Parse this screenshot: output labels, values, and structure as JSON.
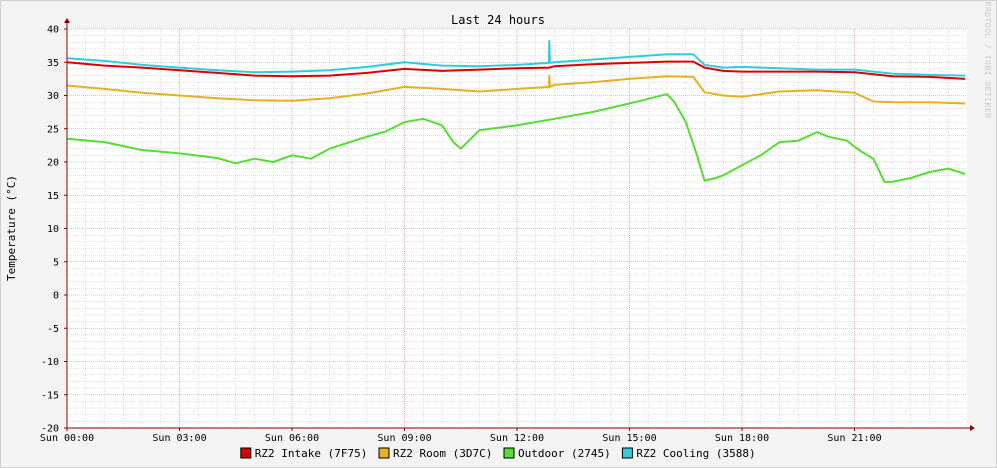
{
  "colors": {
    "background": "#f3f3f3",
    "canvas": "#ffffff",
    "minor_grid": "#e6b4b4",
    "major_grid": "#e08080",
    "axis": "#8b0000"
  },
  "chart_data": {
    "type": "line",
    "title": "Last 24 hours",
    "xlabel": "",
    "ylabel": "Temperature (°C)",
    "watermark": "RRDTOOL / TOBI OETIKER",
    "ylim": [
      -20,
      40
    ],
    "xlim_hours": [
      0,
      24
    ],
    "y_ticks": [
      40,
      35,
      30,
      25,
      20,
      15,
      10,
      5,
      0,
      -5,
      -10,
      -15,
      -20
    ],
    "x_tick_labels": [
      "Sun 00:00",
      "Sun 03:00",
      "Sun 06:00",
      "Sun 09:00",
      "Sun 12:00",
      "Sun 15:00",
      "Sun 18:00",
      "Sun 21:00"
    ],
    "x_tick_hours": [
      0,
      3,
      6,
      9,
      12,
      15,
      18,
      21
    ],
    "grid": true,
    "legend_position": "bottom",
    "series": [
      {
        "name": "RZ2 Intake (7F75)",
        "color": "#dd0000",
        "x": [
          0,
          1,
          2,
          3,
          4,
          5,
          6,
          7,
          8,
          9,
          10,
          11,
          12,
          12.85,
          13,
          14,
          15,
          16,
          16.7,
          17,
          17.5,
          18,
          19,
          20,
          21,
          22,
          23,
          23.95
        ],
        "y": [
          35,
          34.5,
          34.2,
          33.8,
          33.4,
          33.0,
          32.9,
          33.0,
          33.4,
          34.0,
          33.7,
          33.9,
          34.1,
          34.2,
          34.4,
          34.7,
          34.9,
          35.1,
          35.1,
          34.2,
          33.7,
          33.6,
          33.6,
          33.6,
          33.5,
          32.9,
          32.8,
          32.5
        ]
      },
      {
        "name": "RZ2 Room (3D7C)",
        "color": "#e6b020",
        "x": [
          0,
          1,
          2,
          3,
          4,
          5,
          6,
          7,
          8,
          9,
          10,
          11,
          12,
          12.85,
          12.86,
          12.88,
          13,
          14,
          15,
          16,
          16.7,
          17,
          17.5,
          18,
          19,
          20,
          21,
          21.5,
          22,
          23,
          23.95
        ],
        "y": [
          31.5,
          31.0,
          30.4,
          30.0,
          29.6,
          29.3,
          29.2,
          29.6,
          30.3,
          31.3,
          31.0,
          30.6,
          31.0,
          31.3,
          33.0,
          31.3,
          31.6,
          32.0,
          32.5,
          32.9,
          32.8,
          30.5,
          30.0,
          29.8,
          30.6,
          30.8,
          30.4,
          29.1,
          29.0,
          29.0,
          28.8
        ]
      },
      {
        "name": "Outdoor (2745)",
        "color": "#55dd33",
        "x": [
          0,
          1,
          2,
          3,
          4,
          4.5,
          5,
          5.5,
          6,
          6.5,
          7,
          8,
          8.5,
          9,
          9.5,
          10,
          10.3,
          10.5,
          11,
          12,
          13,
          14,
          15,
          15.5,
          16,
          16.2,
          16.5,
          16.8,
          17,
          17.3,
          17.5,
          18,
          18.5,
          19,
          19.5,
          20,
          20.3,
          20.8,
          21,
          21.2,
          21.5,
          21.8,
          22,
          22.5,
          23,
          23.5,
          23.95
        ],
        "y": [
          23.5,
          23,
          21.8,
          21.3,
          20.6,
          19.8,
          20.5,
          20.0,
          21.0,
          20.5,
          22.0,
          23.8,
          24.6,
          26.0,
          26.5,
          25.5,
          23.0,
          22.0,
          24.8,
          25.5,
          26.5,
          27.5,
          28.8,
          29.5,
          30.2,
          29.0,
          26.0,
          21.0,
          17.2,
          17.6,
          18.0,
          19.5,
          21.0,
          23.0,
          23.2,
          24.5,
          23.8,
          23.2,
          22.3,
          21.5,
          20.5,
          17.0,
          17.0,
          17.6,
          18.5,
          19.0,
          18.2
        ]
      },
      {
        "name": "RZ2 Cooling (3588)",
        "color": "#33ccdd",
        "x": [
          0,
          1,
          2,
          3,
          4,
          5,
          6,
          7,
          8,
          9,
          10,
          11,
          12,
          12.85,
          12.86,
          12.88,
          13,
          14,
          15,
          16,
          16.7,
          17,
          17.5,
          18,
          19,
          20,
          21,
          22,
          23,
          23.95
        ],
        "y": [
          35.6,
          35.2,
          34.6,
          34.2,
          33.8,
          33.5,
          33.6,
          33.8,
          34.3,
          35.0,
          34.5,
          34.4,
          34.6,
          34.9,
          38.2,
          34.9,
          35.0,
          35.4,
          35.8,
          36.2,
          36.2,
          34.6,
          34.2,
          34.3,
          34.1,
          33.9,
          33.9,
          33.3,
          33.1,
          33.0
        ]
      }
    ]
  }
}
